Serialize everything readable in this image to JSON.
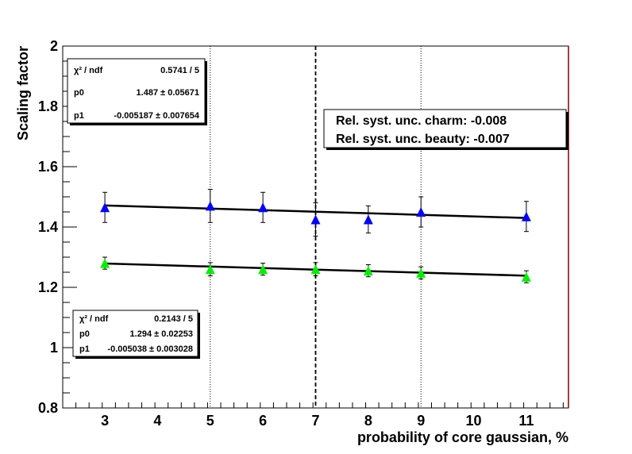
{
  "chart_data": {
    "type": "scatter",
    "title": "",
    "xlabel": "probability of core gaussian, %",
    "ylabel": "Scaling factor",
    "xlim": [
      2.2,
      11.8
    ],
    "ylim": [
      0.8,
      2.0
    ],
    "x_ticks": [
      "3",
      "4",
      "5",
      "6",
      "7",
      "8",
      "9",
      "10",
      "11"
    ],
    "y_ticks": [
      "0.8",
      "1",
      "1.2",
      "1.4",
      "1.6",
      "1.8",
      "2"
    ],
    "grid": "vertical dotted lines at x = 5 and 9, dashed line at x = 7",
    "vertical_lines": [
      {
        "x": 5,
        "style": "dotted"
      },
      {
        "x": 7,
        "style": "dashed"
      },
      {
        "x": 9,
        "style": "dotted"
      }
    ],
    "series": [
      {
        "color": "#0000ff",
        "marker": "triangle",
        "x": [
          3,
          5,
          6,
          7,
          8,
          9,
          11
        ],
        "y": [
          1.465,
          1.47,
          1.465,
          1.425,
          1.425,
          1.45,
          1.435
        ],
        "err": [
          0.05,
          0.055,
          0.05,
          0.055,
          0.045,
          0.05,
          0.05
        ],
        "fit": {
          "p0": 1.487,
          "p1": -0.005187
        }
      },
      {
        "color": "#00ee00",
        "marker": "triangle",
        "x": [
          3,
          5,
          6,
          7,
          8,
          9,
          11
        ],
        "y": [
          1.28,
          1.26,
          1.26,
          1.26,
          1.255,
          1.248,
          1.235
        ],
        "err": [
          0.02,
          0.022,
          0.02,
          0.022,
          0.02,
          0.02,
          0.02
        ],
        "fit": {
          "p0": 1.294,
          "p1": -0.005038
        }
      }
    ],
    "stat_boxes": [
      {
        "chi2_label": "χ² / ndf",
        "chi2_value": "0.5741 / 5",
        "p0_label": "p0",
        "p0_value": "1.487 ± 0.05671",
        "p1_label": "p1",
        "p1_value": "-0.005187 ± 0.007654"
      },
      {
        "chi2_label": "χ² / ndf",
        "chi2_value": "0.2143 / 5",
        "p0_label": "p0",
        "p0_value": "1.294 ± 0.02253",
        "p1_label": "p1",
        "p1_value": "-0.005038 ± 0.003028"
      }
    ],
    "annotations": [
      "Rel. syst. unc. charm: -0.008",
      "Rel. syst. unc. beauty: -0.007"
    ]
  }
}
